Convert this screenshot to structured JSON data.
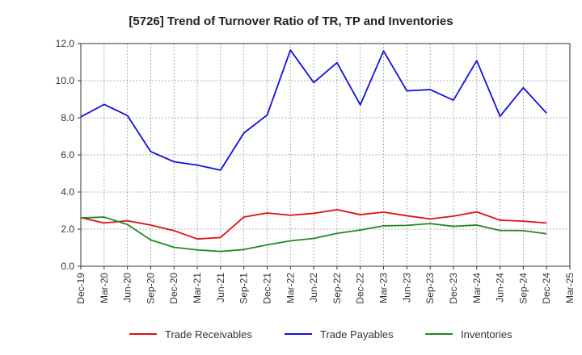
{
  "chart_data": {
    "type": "line",
    "title": "[5726]  Trend of Turnover Ratio of TR, TP and Inventories",
    "xlabel": "",
    "ylabel": "",
    "ylim": [
      0,
      12
    ],
    "yticks": [
      "0.0",
      "2.0",
      "4.0",
      "6.0",
      "8.0",
      "10.0",
      "12.0"
    ],
    "grid": true,
    "legend_position": "bottom",
    "x_tick_labels": [
      "Dec-19",
      "Mar-20",
      "Jun-20",
      "Sep-20",
      "Dec-20",
      "Mar-21",
      "Jun-21",
      "Sep-21",
      "Dec-21",
      "Mar-22",
      "Jun-22",
      "Sep-22",
      "Dec-22",
      "Mar-23",
      "Jun-23",
      "Sep-23",
      "Dec-23",
      "Mar-24",
      "Jun-24",
      "Sep-24",
      "Dec-24",
      "Mar-25"
    ],
    "x": [
      "Dec-19",
      "Mar-20",
      "Jun-20",
      "Sep-20",
      "Dec-20",
      "Mar-21",
      "Jun-21",
      "Sep-21",
      "Dec-21",
      "Mar-22",
      "Jun-22",
      "Sep-22",
      "Dec-22",
      "Mar-23",
      "Jun-23",
      "Sep-23",
      "Dec-23",
      "Mar-24",
      "Jun-24",
      "Sep-24",
      "Dec-24"
    ],
    "series": [
      {
        "name": "Trade Receivables",
        "color": "#dd1111",
        "values": [
          2.62,
          2.33,
          2.45,
          2.22,
          1.92,
          1.47,
          1.55,
          2.65,
          2.87,
          2.75,
          2.85,
          3.05,
          2.78,
          2.92,
          2.72,
          2.55,
          2.7,
          2.93,
          2.48,
          2.43,
          2.33
        ]
      },
      {
        "name": "Trade Payables",
        "color": "#1111dd",
        "values": [
          8.05,
          8.72,
          8.12,
          6.18,
          5.63,
          5.45,
          5.18,
          7.18,
          8.15,
          11.65,
          9.9,
          10.97,
          8.7,
          11.6,
          9.45,
          9.52,
          8.95,
          11.08,
          8.08,
          9.62,
          8.25
        ]
      },
      {
        "name": "Inventories",
        "color": "#228822",
        "values": [
          2.6,
          2.65,
          2.25,
          1.42,
          1.02,
          0.88,
          0.8,
          0.9,
          1.15,
          1.37,
          1.5,
          1.77,
          1.95,
          2.18,
          2.2,
          2.3,
          2.15,
          2.22,
          1.93,
          1.92,
          1.75
        ]
      }
    ]
  }
}
